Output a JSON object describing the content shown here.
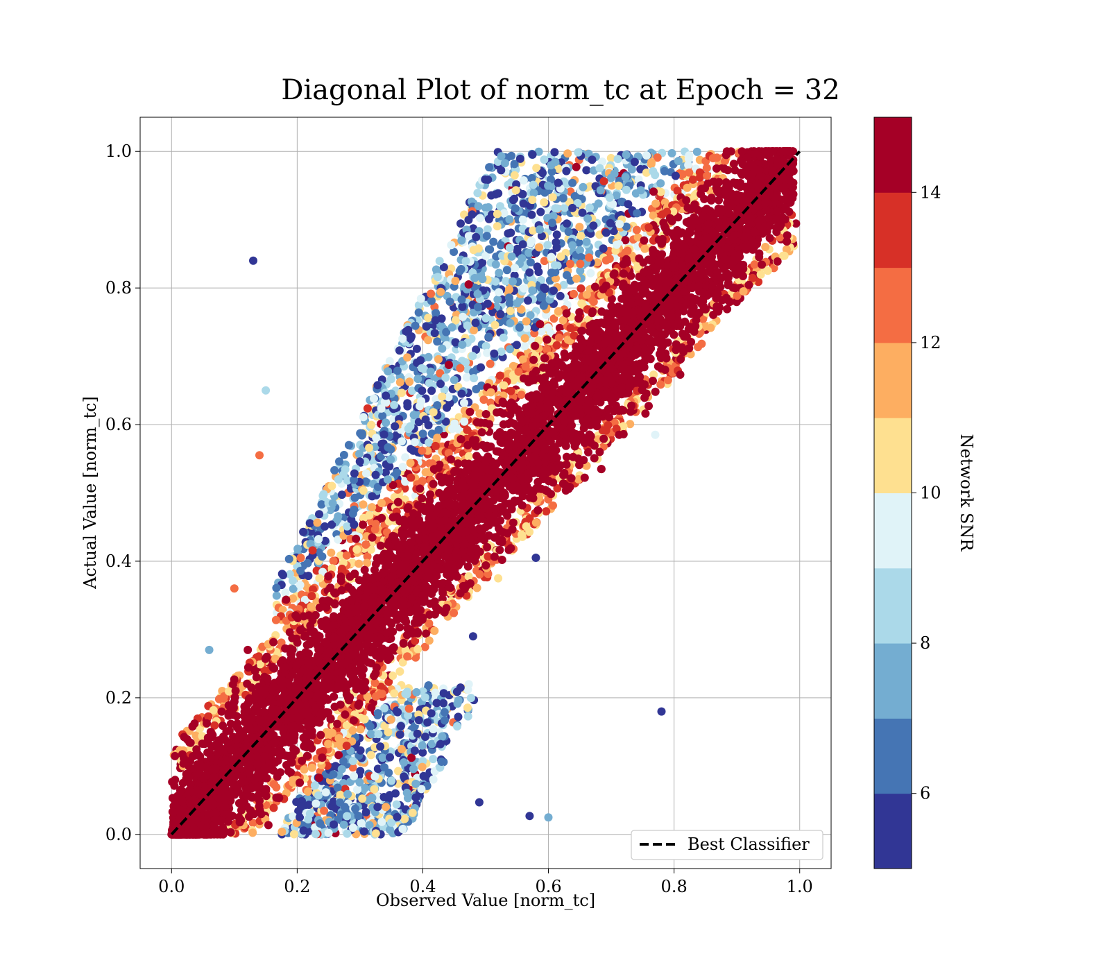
{
  "chart_data": {
    "type": "scatter",
    "title": "Diagonal Plot of norm_tc at Epoch = 32",
    "xlabel": "Observed Value [norm_tc]",
    "ylabel": "Actual Value [norm_tc]",
    "xlim": [
      -0.05,
      1.05
    ],
    "ylim": [
      -0.05,
      1.05
    ],
    "xticks": [
      "0.0",
      "0.2",
      "0.4",
      "0.6",
      "0.8",
      "1.0"
    ],
    "yticks": [
      "0.0",
      "0.2",
      "0.4",
      "0.6",
      "0.8",
      "1.0"
    ],
    "grid": true,
    "legend": {
      "placement": "bottom-right",
      "entries": [
        "Best Classifier"
      ]
    },
    "reference_line": {
      "name": "Best Classifier",
      "style": "dashed",
      "color": "#000000",
      "from": [
        0,
        0
      ],
      "to": [
        1,
        1
      ]
    },
    "colorbar": {
      "label": "Network SNR",
      "range": [
        5,
        15
      ],
      "ticks": [
        "6",
        "8",
        "10",
        "12",
        "14"
      ],
      "tick_values": [
        6,
        8,
        10,
        12,
        14
      ],
      "colors": [
        "#313695",
        "#4575b4",
        "#74add1",
        "#abd9e9",
        "#e0f3f8",
        "#fee090",
        "#fdae61",
        "#f46d43",
        "#d73027",
        "#a50026"
      ]
    },
    "point_clusters": [
      {
        "region": "diagonal band",
        "x_range": [
          0.0,
          1.0
        ],
        "offset_from_diagonal": 0.09,
        "snr": 14.5,
        "color": "#a50026"
      },
      {
        "region": "upper-left spread",
        "x_range": [
          0.15,
          0.85
        ],
        "y_range": [
          0.3,
          1.0
        ],
        "snr_range": [
          5,
          12
        ]
      },
      {
        "region": "lower-right spread",
        "x_range": [
          0.1,
          0.6
        ],
        "y_range": [
          0.0,
          0.22
        ],
        "snr_range": [
          5,
          12
        ]
      }
    ],
    "outliers": [
      {
        "x": 0.78,
        "y": 0.18,
        "snr": 5.2
      },
      {
        "x": 0.58,
        "y": 0.405,
        "snr": 5.2
      },
      {
        "x": 0.13,
        "y": 0.84,
        "snr": 5.2
      },
      {
        "x": 0.06,
        "y": 0.27,
        "snr": 7.5
      },
      {
        "x": 0.15,
        "y": 0.65,
        "snr": 8.0
      },
      {
        "x": 0.77,
        "y": 0.585,
        "snr": 9.5
      },
      {
        "x": 0.6,
        "y": 0.025,
        "snr": 7.5
      },
      {
        "x": 0.57,
        "y": 0.027,
        "snr": 5.2
      },
      {
        "x": 0.48,
        "y": 0.29,
        "snr": 5.2
      },
      {
        "x": 0.52,
        "y": 0.375,
        "snr": 10.5
      },
      {
        "x": 0.1,
        "y": 0.36,
        "snr": 12.0
      },
      {
        "x": 0.14,
        "y": 0.555,
        "snr": 12.0
      },
      {
        "x": 0.49,
        "y": 0.047,
        "snr": 5.2
      },
      {
        "x": 0.46,
        "y": 0.215,
        "snr": 5.2
      }
    ]
  }
}
